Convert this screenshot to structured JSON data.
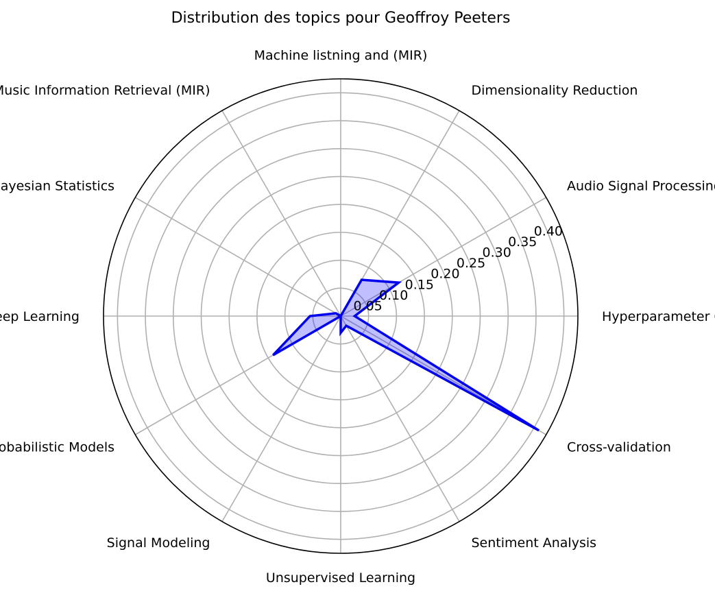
{
  "chart_data": {
    "type": "radar",
    "title": "Distribution des topics pour Geoffroy Peeters",
    "categories": [
      "Hyperparameter Optimization",
      "Audio Signal Processing",
      "Dimensionality Reduction",
      "Machine listning and (MIR)",
      "Machine Listening and Music Information Retrieval (MIR)",
      "Bayesian Statistics",
      "Deep Learning",
      "Probabilistic Models",
      "Signal Modeling",
      "Unsupervised Learning",
      "Sentiment Analysis",
      "Cross-validation"
    ],
    "series": [
      {
        "values": [
          0.025,
          0.12,
          0.075,
          0.0,
          0.0,
          0.01,
          0.055,
          0.14,
          0.0,
          0.03,
          0.02,
          0.41
        ],
        "line_color": "#0000ee",
        "fill_color": "#0000ff",
        "fill_opacity": 0.25
      }
    ],
    "r_ticks": [
      0.05,
      0.1,
      0.15,
      0.2,
      0.25,
      0.3,
      0.35,
      0.4
    ],
    "r_tick_labels": [
      "0.05",
      "0.10",
      "0.15",
      "0.20",
      "0.25",
      "0.30",
      "0.35",
      "0.40"
    ],
    "rlim": [
      0,
      0.425
    ],
    "grid": true
  }
}
